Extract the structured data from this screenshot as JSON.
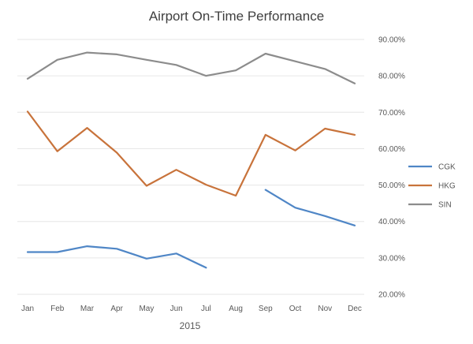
{
  "chart_data": {
    "type": "line",
    "title": "Airport On-Time Performance",
    "xlabel": "2015",
    "ylabel": "",
    "categories": [
      "Jan",
      "Feb",
      "Mar",
      "Apr",
      "May",
      "Jun",
      "Jul",
      "Aug",
      "Sep",
      "Oct",
      "Nov",
      "Dec"
    ],
    "ylim": [
      20,
      90
    ],
    "yticks": [
      20,
      30,
      40,
      50,
      60,
      70,
      80,
      90
    ],
    "ytick_labels": [
      "20.00%",
      "30.00%",
      "40.00%",
      "50.00%",
      "60.00%",
      "70.00%",
      "80.00%",
      "90.00%"
    ],
    "grid": true,
    "legend_position": "right",
    "series": [
      {
        "name": "CGK",
        "color": "#4f86c6",
        "values": [
          31.6,
          31.6,
          33.2,
          32.5,
          29.8,
          31.2,
          27.3,
          null,
          48.7,
          43.8,
          41.5,
          38.9
        ]
      },
      {
        "name": "HKG",
        "color": "#c8733b",
        "values": [
          70.2,
          59.3,
          65.7,
          58.9,
          49.8,
          54.2,
          50.1,
          47.1,
          63.8,
          59.5,
          65.5,
          63.8
        ]
      },
      {
        "name": "SIN",
        "color": "#8c8c8c",
        "values": [
          79.2,
          84.4,
          86.4,
          85.9,
          84.4,
          83.0,
          80.0,
          81.5,
          86.1,
          84.0,
          81.9,
          77.9
        ]
      }
    ]
  }
}
